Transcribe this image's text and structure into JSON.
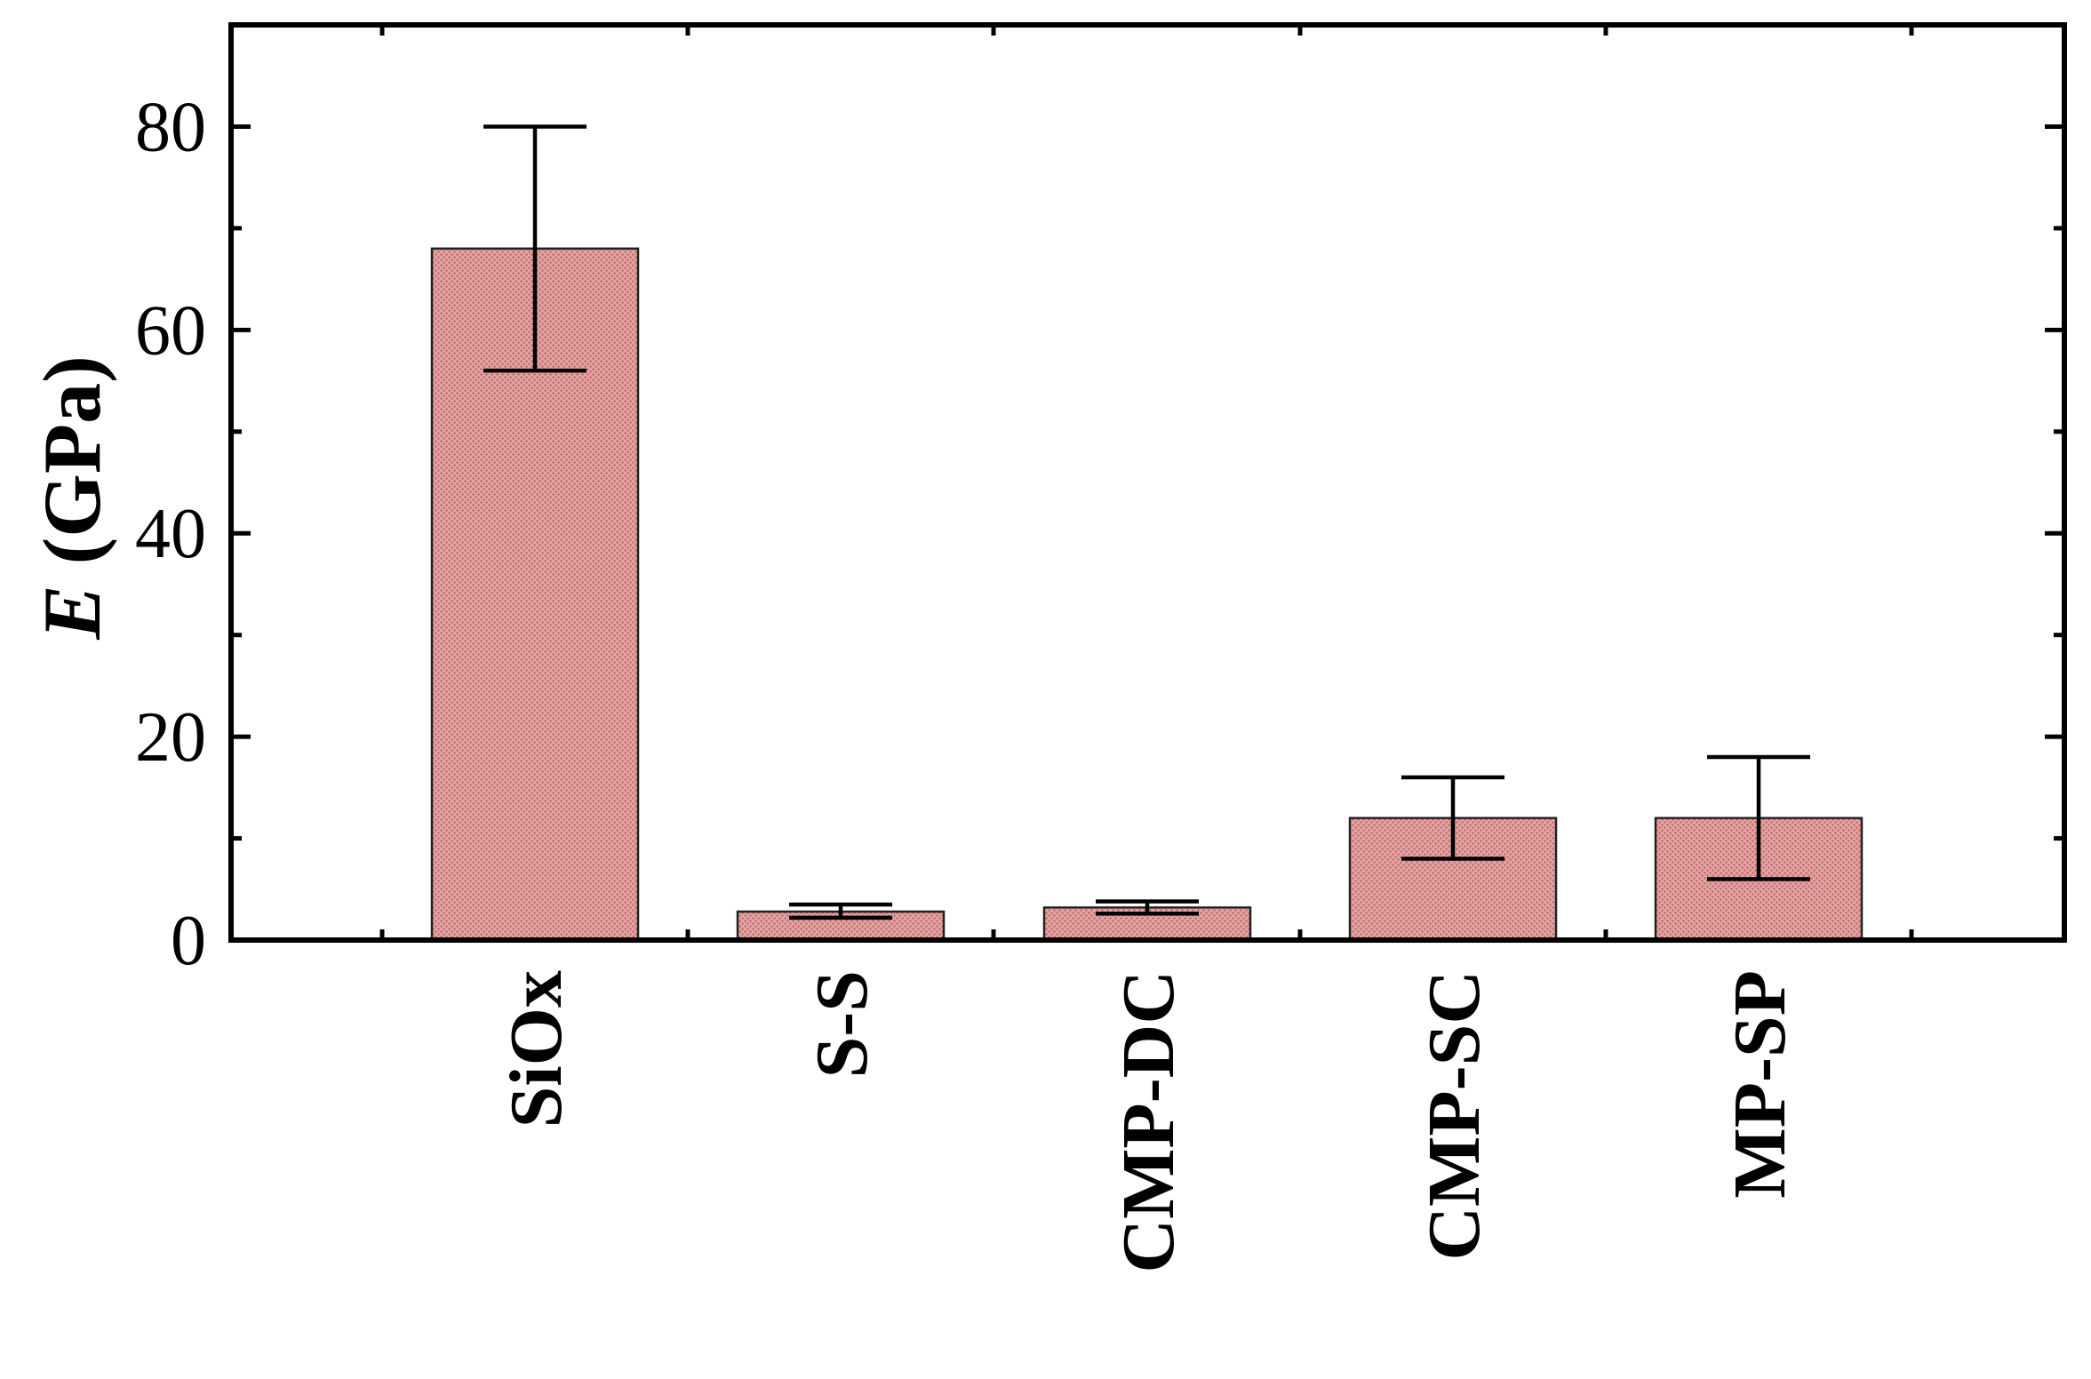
{
  "chart_data": {
    "type": "bar",
    "categories": [
      "SiOx",
      "S-S",
      "CMP-DC",
      "CMP-SC",
      "MP-SP"
    ],
    "values": [
      68,
      2.8,
      3.2,
      12,
      12
    ],
    "error_low": [
      56,
      2.2,
      2.6,
      8,
      6
    ],
    "error_high": [
      80,
      3.5,
      3.8,
      16,
      18
    ],
    "ylabel_italic": "E",
    "ylabel_rest": " (GPa)",
    "ylim": [
      0,
      90
    ],
    "yticks": [
      0,
      20,
      40,
      60,
      80
    ],
    "ytick_labels": [
      "0",
      "20",
      "40",
      "60",
      "80"
    ],
    "bar_color": "#d98d8d",
    "bar_hatch_color": "#b85c5c",
    "grid": false,
    "legend": "none"
  }
}
